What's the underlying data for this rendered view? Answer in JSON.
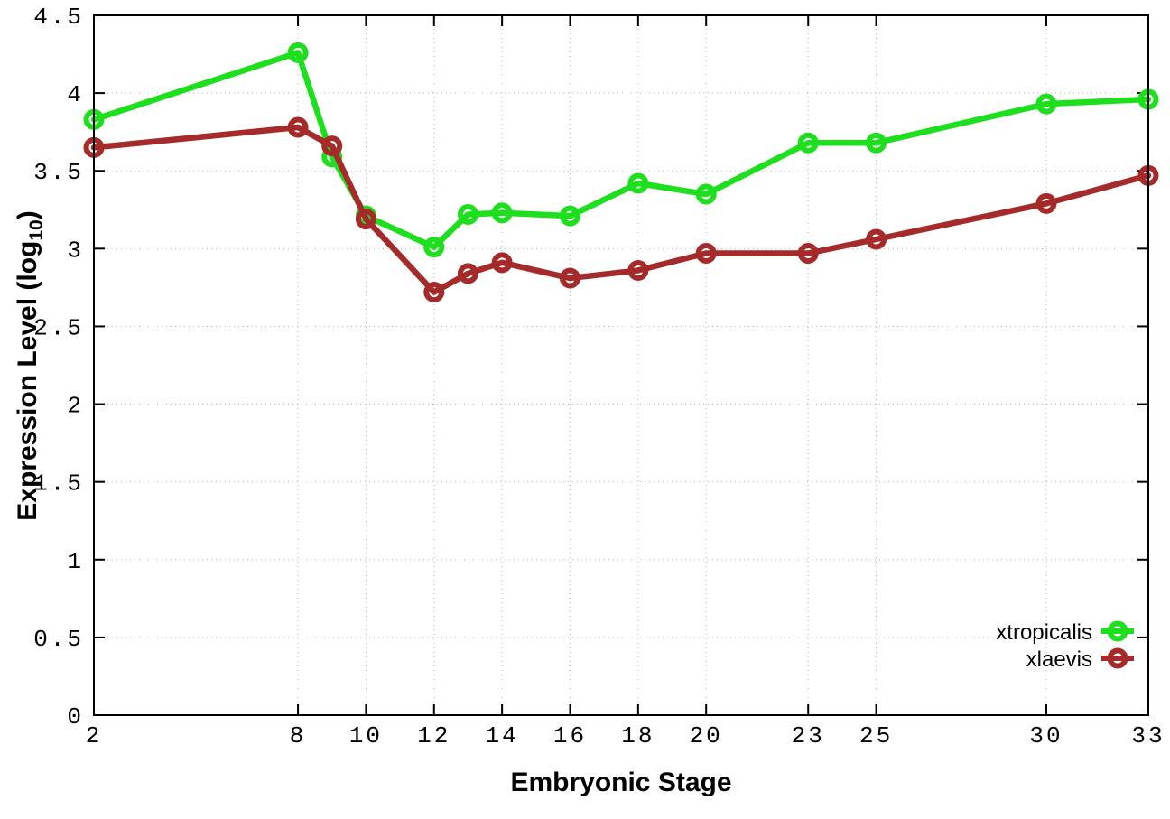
{
  "chart_data": {
    "type": "line",
    "title": "",
    "xlabel": "Embryonic Stage",
    "ylabel": "Expression Level (log10)",
    "ylabel_parts": {
      "main": "Expression Level (log",
      "sub": "10",
      "end": ")"
    },
    "xlim": [
      2,
      33
    ],
    "ylim": [
      0,
      4.5
    ],
    "grid": true,
    "legend_position": "bottom-right",
    "x": [
      2,
      8,
      9,
      10,
      12,
      13,
      14,
      16,
      18,
      20,
      23,
      25,
      30,
      33
    ],
    "x_tick_values": [
      2,
      8,
      10,
      12,
      14,
      16,
      18,
      20,
      23,
      25,
      30,
      33
    ],
    "x_tick_labels": [
      "2",
      "8",
      "10",
      "12",
      "14",
      "16",
      "18",
      "20",
      "23",
      "25",
      "30",
      "33"
    ],
    "y_tick_values": [
      0,
      0.5,
      1,
      1.5,
      2,
      2.5,
      3,
      3.5,
      4,
      4.5
    ],
    "y_tick_labels": [
      "0",
      "0.5",
      "1",
      "1.5",
      "2",
      "2.5",
      "3",
      "3.5",
      "4",
      "4.5"
    ],
    "marker": "open-circle",
    "grid_color": "#b5b5b5",
    "border_color": "#000000",
    "series": [
      {
        "name": "xtropicalis",
        "color": "#1ddf1d",
        "values": [
          3.83,
          4.26,
          3.59,
          3.21,
          3.01,
          3.22,
          3.23,
          3.21,
          3.42,
          3.35,
          3.68,
          3.68,
          3.93,
          3.96
        ]
      },
      {
        "name": "xlaevis",
        "color": "#a52a2a",
        "values": [
          3.65,
          3.78,
          3.66,
          3.19,
          2.72,
          2.84,
          2.91,
          2.81,
          2.86,
          2.97,
          2.97,
          3.06,
          3.29,
          3.47
        ]
      }
    ]
  }
}
